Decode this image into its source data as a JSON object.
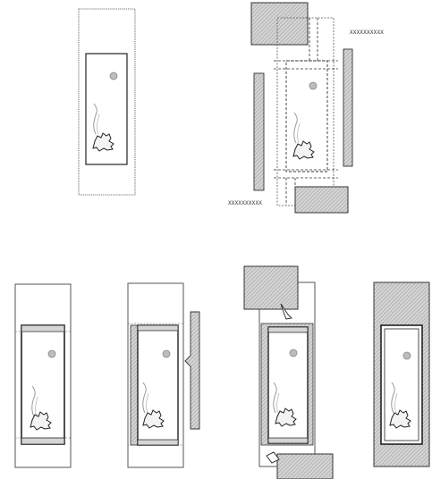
{
  "figure": {
    "steps": [
      {
        "id": "a",
        "description": "base panel with framed picture"
      },
      {
        "id": "b",
        "description": "exploded view with side strips and top/bottom blocks"
      },
      {
        "id": "c1",
        "description": "mounted picture with top and bottom bands"
      },
      {
        "id": "c2",
        "description": "side strip attached"
      },
      {
        "id": "c3",
        "description": "top and bottom blocks inserted"
      },
      {
        "id": "c4",
        "description": "fully assembled"
      }
    ],
    "labels": {
      "upper_code": "XXXXXXXXXX",
      "lower_code": "XXXXXXXXXX"
    },
    "colors": {
      "line": "#333333",
      "hatch": "#9a9a9a",
      "fill_light": "#d8d8d8",
      "circle": "#9e9e9e"
    }
  }
}
